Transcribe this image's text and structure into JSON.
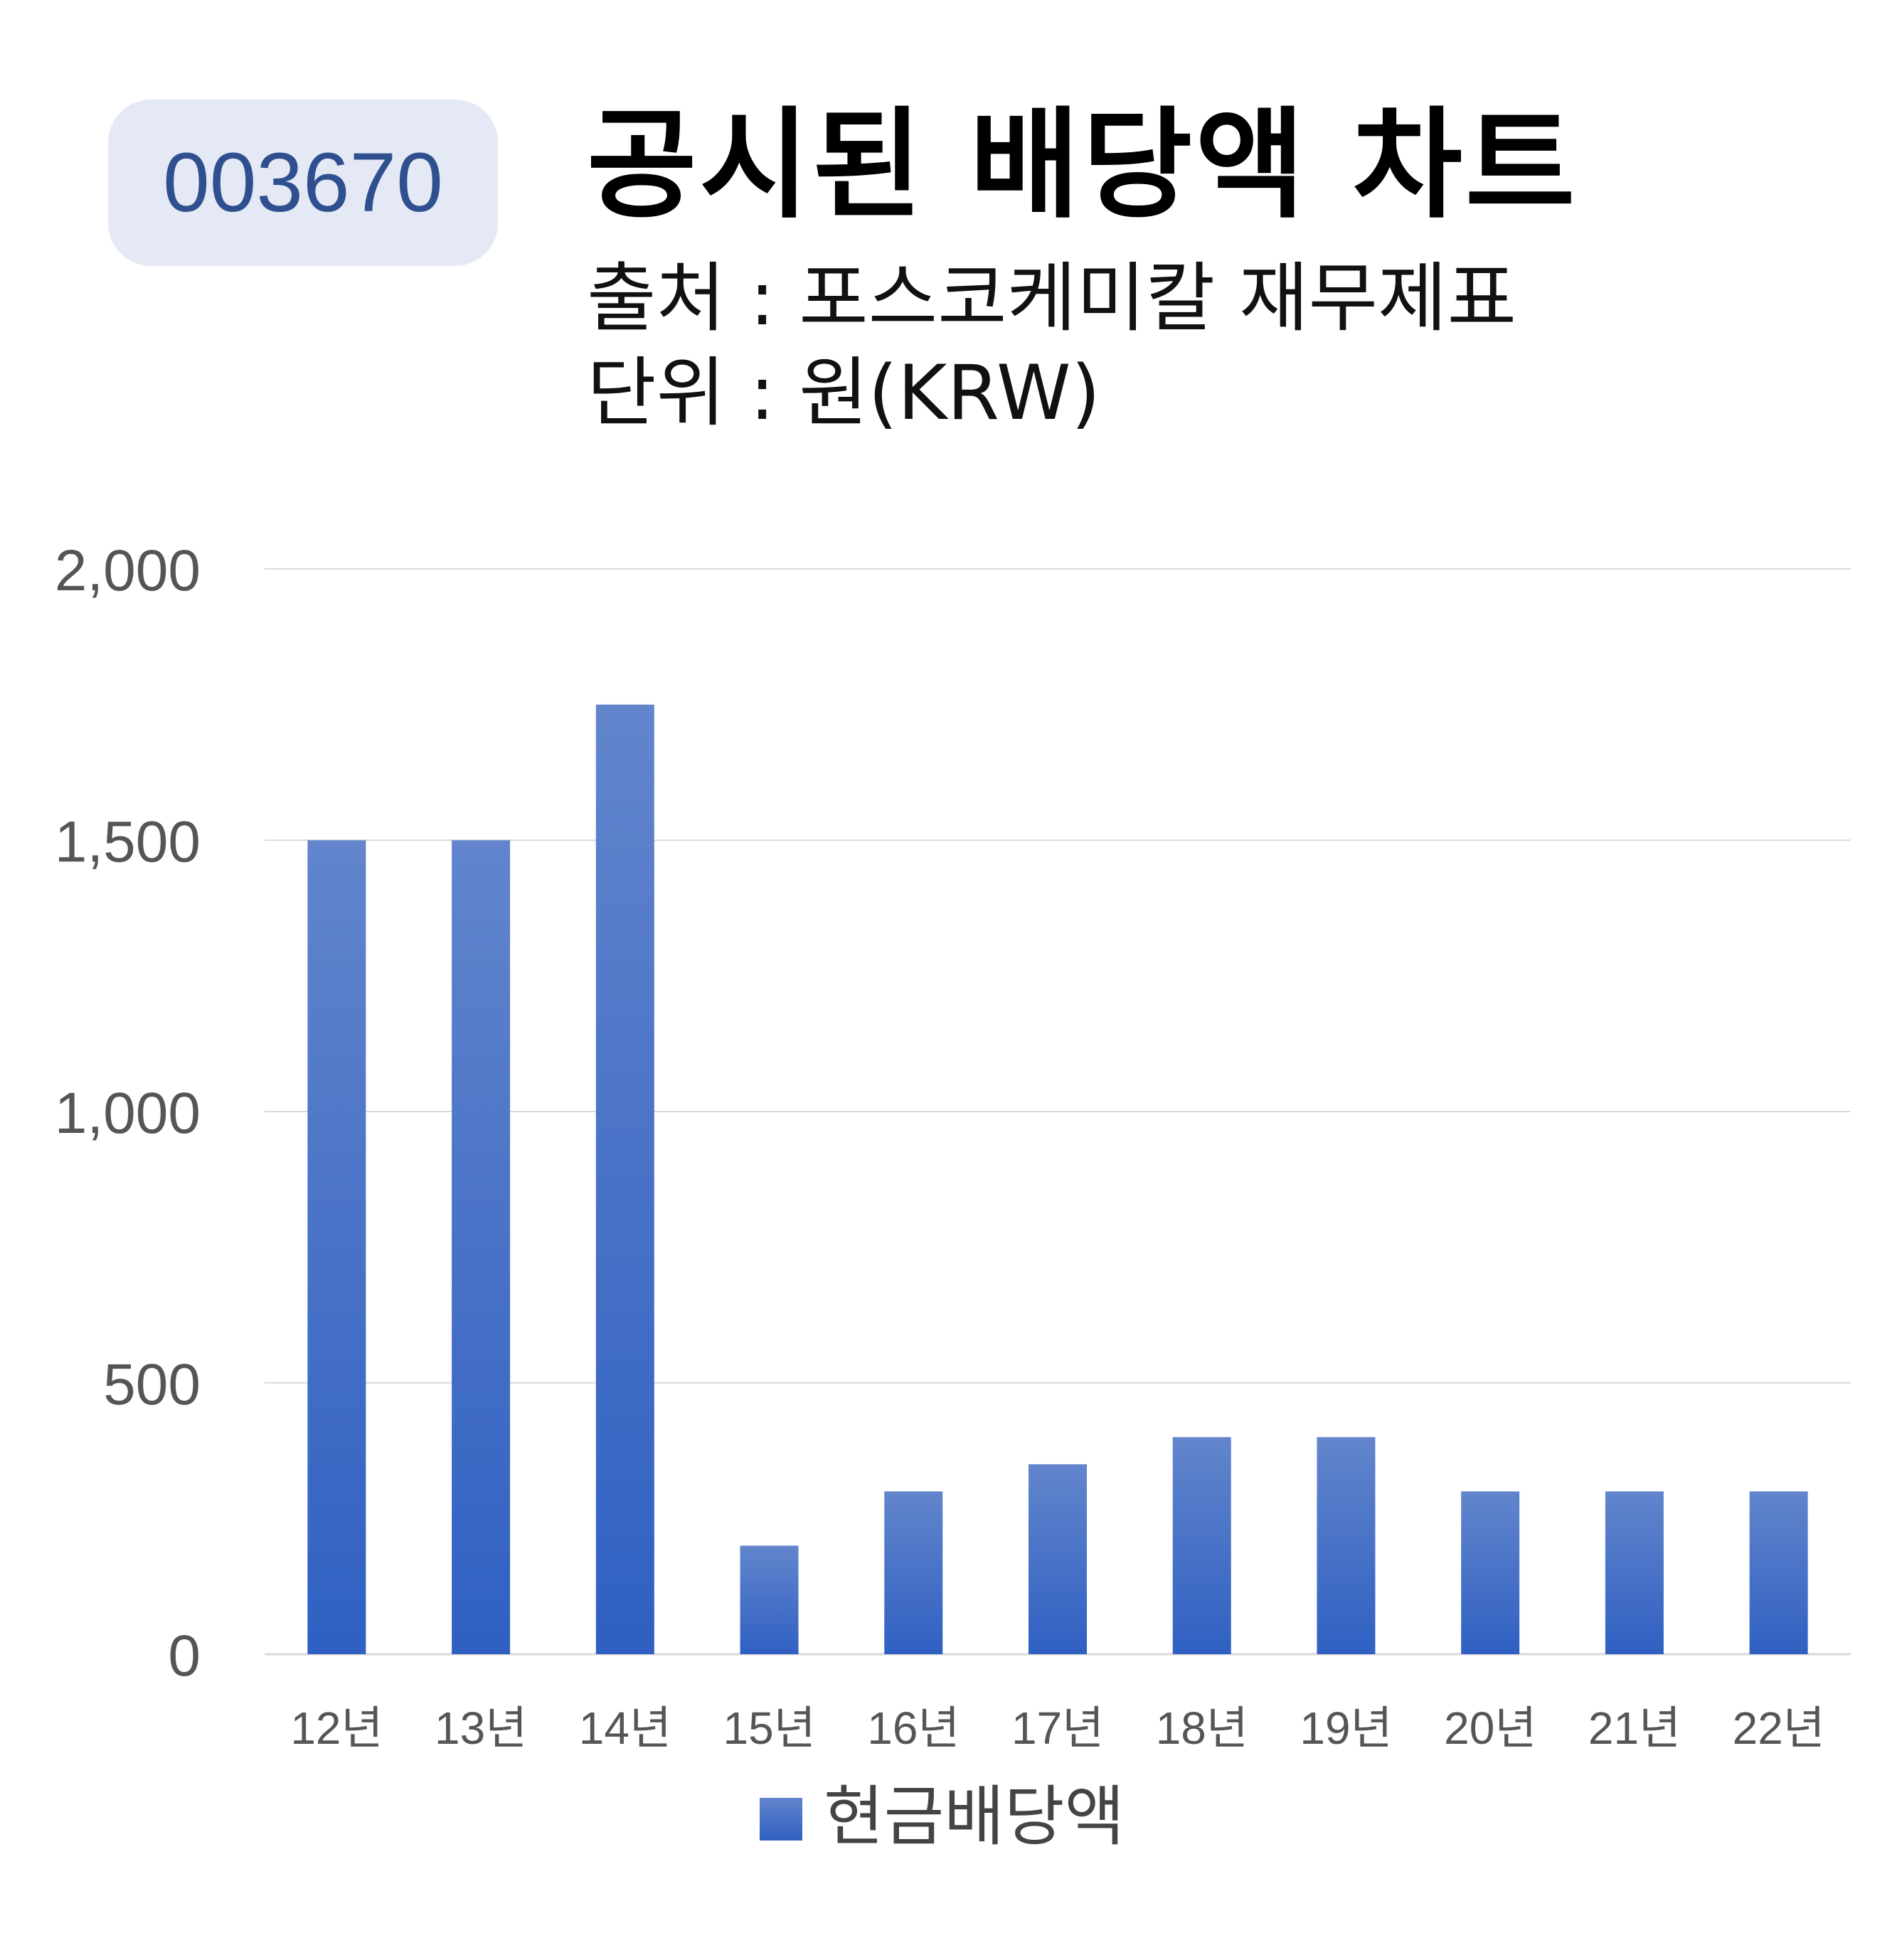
{
  "badge": {
    "ticker": "003670"
  },
  "header": {
    "title": "공시된 배당액 차트",
    "source": "출처 : 포스코케미칼 재무제표",
    "unit": "단위 : 원(KRW)"
  },
  "colors": {
    "bar_top": "#6285cc",
    "bar_bottom": "#2f60c2",
    "grid": "#d9d9d9",
    "badge_bg": "#e4e9f5",
    "badge_text": "#2f4f8f"
  },
  "chart_data": {
    "type": "bar",
    "categories": [
      "12년",
      "13년",
      "14년",
      "15년",
      "16년",
      "17년",
      "18년",
      "19년",
      "20년",
      "21년",
      "22년"
    ],
    "series": [
      {
        "name": "현금배당액",
        "values": [
          1500,
          1500,
          1750,
          200,
          300,
          350,
          400,
          400,
          300,
          300,
          300
        ]
      }
    ],
    "ylim": [
      0,
      2000
    ],
    "yticks": [
      0,
      500,
      1000,
      1500,
      2000
    ],
    "ytick_labels": [
      "0",
      "500",
      "1,000",
      "1,500",
      "2,000"
    ],
    "grid": true,
    "legend": "bottom"
  }
}
